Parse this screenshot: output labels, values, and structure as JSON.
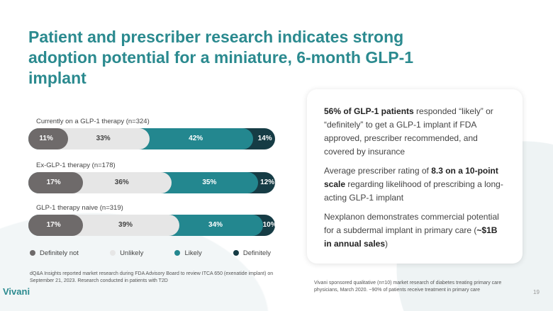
{
  "title": "Patient and prescriber research indicates strong adoption potential for a miniature, 6-month GLP-1 implant",
  "chart_data": {
    "type": "bar",
    "orientation": "horizontal-stacked-100",
    "categories": [
      "Currently on a GLP-1 therapy (n=324)",
      "Ex-GLP-1 therapy (n=178)",
      "GLP-1 therapy naive (n=319)"
    ],
    "series": [
      {
        "name": "Definitely not",
        "color": "#6e6a6a",
        "values": [
          11,
          17,
          17
        ]
      },
      {
        "name": "Unlikely",
        "color": "#e6e6e6",
        "values": [
          33,
          36,
          39
        ]
      },
      {
        "name": "Likely",
        "color": "#23878f",
        "values": [
          42,
          35,
          34
        ]
      },
      {
        "name": "Definitely",
        "color": "#163c45",
        "values": [
          14,
          12,
          10
        ]
      }
    ],
    "labels": [
      [
        "11%",
        "33%",
        "42%",
        "14%"
      ],
      [
        "17%",
        "36%",
        "35%",
        "12%"
      ],
      [
        "17%",
        "39%",
        "34%",
        "10%"
      ]
    ]
  },
  "footnote_left": "dQ&A Insights reported market research during FDA Advisory Board to review ITCA 650 (exenatide implant) on September 21, 2023. Research conducted in patients with T2D",
  "card": {
    "p1_bold": "56% of GLP-1 patients",
    "p1_rest": " responded “likely” or “definitely” to get a GLP-1 implant if FDA approved, prescriber recommended, and covered by insurance",
    "p2_a": "Average prescriber rating of ",
    "p2_bold": "8.3 on a 10-point scale",
    "p2_rest": " regarding likelihood of prescribing a long-acting GLP-1 implant",
    "p3_a": "Nexplanon demonstrates commercial potential for a subdermal implant in primary care (",
    "p3_bold": "~$1B in annual sales",
    "p3_end": ")"
  },
  "footnote_right": "Vivani sponsored qualitative (n=10) market research of diabetes treating primary care physicians, March 2020. ~90% of patients receive treatment in primary care",
  "logo": "Vivani",
  "page_number": "19"
}
